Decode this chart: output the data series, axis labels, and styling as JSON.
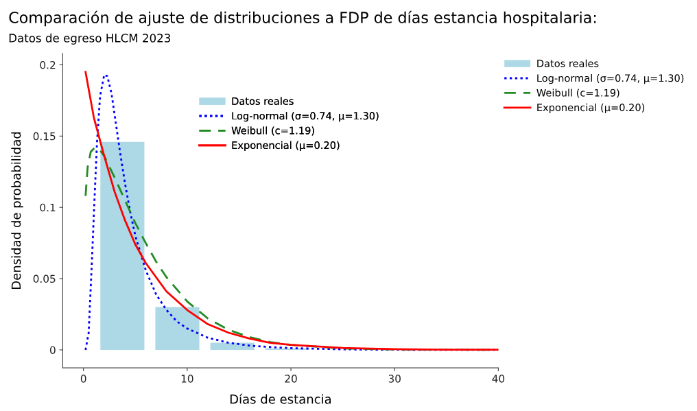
{
  "chart_data": {
    "type": "histogram",
    "title": "Comparación de ajuste de distribuciones a FDP de días estancia hospitalaria:",
    "subtitle": "Datos de egreso HLCM 2023",
    "xlabel": "Días de estancia",
    "ylabel": "Densidad de probabilidad",
    "xlim": [
      -2,
      40
    ],
    "ylim": [
      -0.0126,
      0.208
    ],
    "xticks": [
      0,
      10,
      20,
      30,
      40
    ],
    "yticks": [
      0,
      0.05,
      0.1,
      0.15,
      0.2
    ],
    "grid": false,
    "legend": [
      "right",
      "top"
    ],
    "series": [
      {
        "name": "Datos reales",
        "color": "#add8e6",
        "bins": [
          1.1,
          6.4,
          11.7,
          17.0,
          22.3
        ],
        "values": [
          0.146,
          0.03,
          0.005,
          0.001
        ]
      },
      {
        "name": "Log-normal (σ=0.74, μ=1.30)",
        "type": "line",
        "color": "#0000ff",
        "line_style": "dotted",
        "x": [
          0.2,
          0.5,
          0.8,
          1,
          1.3,
          1.6,
          2.0,
          2.3,
          2.7,
          3,
          3.5,
          4,
          4.5,
          5,
          6,
          7,
          8,
          9,
          10,
          12,
          14,
          16,
          18,
          20,
          25,
          30,
          40
        ],
        "values": [
          0.0,
          0.012,
          0.06,
          0.095,
          0.145,
          0.178,
          0.193,
          0.192,
          0.18,
          0.165,
          0.14,
          0.117,
          0.097,
          0.08,
          0.056,
          0.039,
          0.028,
          0.02,
          0.015,
          0.0085,
          0.005,
          0.003,
          0.002,
          0.0012,
          0.0004,
          0.0001,
          0.0
        ]
      },
      {
        "name": "Weibull (c=1.19)",
        "type": "line",
        "color": "#228b22",
        "line_style": "dashed",
        "x": [
          0.2,
          0.4,
          0.7,
          1.1,
          1.5,
          2,
          3,
          4,
          5,
          6,
          7,
          8,
          10,
          12,
          14,
          16,
          18,
          20,
          25,
          30,
          40
        ],
        "values": [
          0.108,
          0.128,
          0.139,
          0.142,
          0.141,
          0.136,
          0.121,
          0.105,
          0.089,
          0.075,
          0.062,
          0.051,
          0.034,
          0.022,
          0.014,
          0.009,
          0.0055,
          0.0035,
          0.001,
          0.0003,
          0.0
        ]
      },
      {
        "name": "Exponencial (μ=0.20)",
        "type": "line",
        "color": "#ff0000",
        "line_style": "solid",
        "x": [
          0.2,
          1,
          2,
          3,
          4,
          5,
          6,
          8,
          10,
          12,
          14,
          16,
          18,
          20,
          25,
          30,
          35,
          40
        ],
        "values": [
          0.195,
          0.163,
          0.136,
          0.111,
          0.091,
          0.074,
          0.061,
          0.041,
          0.028,
          0.018,
          0.012,
          0.008,
          0.005,
          0.0035,
          0.0013,
          0.0005,
          0.0002,
          0.0001
        ]
      }
    ]
  }
}
